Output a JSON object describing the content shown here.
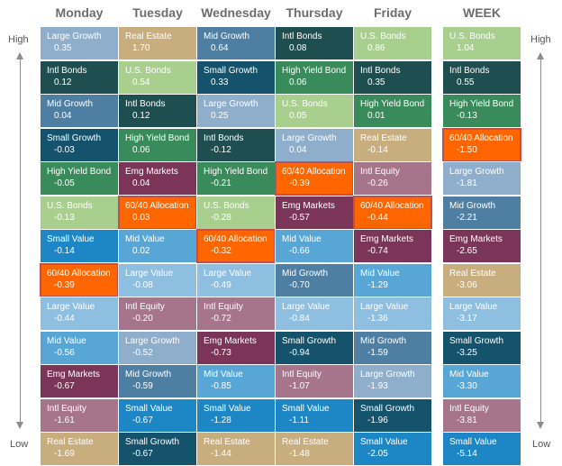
{
  "labels": {
    "high": "High",
    "low": "Low"
  },
  "colors": {
    "Large Growth": "#8faecb",
    "Real Estate": "#c8ad7f",
    "Mid Growth": "#4e7fa3",
    "Intl Bonds": "#1f4e50",
    "U.S. Bonds": "#a9cf8e",
    "Small Growth": "#14536b",
    "High Yield Bond": "#3a8b5b",
    "60/40 Allocation": "#ff6600",
    "Emg Markets": "#7a3559",
    "Intl Equity": "#a6758c",
    "Small Value": "#1d87c6",
    "Mid Value": "#58a6d6",
    "Large Value": "#8fbfe0"
  },
  "columns": [
    {
      "header": "Monday",
      "cells": [
        {
          "name": "Large Growth",
          "value": "0.35"
        },
        {
          "name": "Intl Bonds",
          "value": "0.12"
        },
        {
          "name": "Mid Growth",
          "value": "0.04"
        },
        {
          "name": "Small Growth",
          "value": "-0.03"
        },
        {
          "name": "High Yield Bond",
          "value": "-0.05"
        },
        {
          "name": "U.S. Bonds",
          "value": "-0.13"
        },
        {
          "name": "Small Value",
          "value": "-0.14"
        },
        {
          "name": "60/40 Allocation",
          "value": "-0.39"
        },
        {
          "name": "Large Value",
          "value": "-0.44"
        },
        {
          "name": "Mid Value",
          "value": "-0.56"
        },
        {
          "name": "Emg Markets",
          "value": "-0.67"
        },
        {
          "name": "Intl Equity",
          "value": "-1.61"
        },
        {
          "name": "Real Estate",
          "value": "-1.69"
        }
      ]
    },
    {
      "header": "Tuesday",
      "cells": [
        {
          "name": "Real Estate",
          "value": "1.70"
        },
        {
          "name": "U.S. Bonds",
          "value": "0.54"
        },
        {
          "name": "Intl Bonds",
          "value": "0.12"
        },
        {
          "name": "High Yield Bond",
          "value": "0.06"
        },
        {
          "name": "Emg Markets",
          "value": "0.04"
        },
        {
          "name": "60/40 Allocation",
          "value": "0.03"
        },
        {
          "name": "Mid Value",
          "value": "0.02"
        },
        {
          "name": "Large Value",
          "value": "-0.08"
        },
        {
          "name": "Intl Equity",
          "value": "-0.20"
        },
        {
          "name": "Large Growth",
          "value": "-0.52"
        },
        {
          "name": "Mid Growth",
          "value": "-0.59"
        },
        {
          "name": "Small Value",
          "value": "-0.67"
        },
        {
          "name": "Small Growth",
          "value": "-0.67"
        }
      ]
    },
    {
      "header": "Wednesday",
      "cells": [
        {
          "name": "Mid Growth",
          "value": "0.64"
        },
        {
          "name": "Small Growth",
          "value": "0.33"
        },
        {
          "name": "Large Growth",
          "value": "0.25"
        },
        {
          "name": "Intl Bonds",
          "value": "-0.12"
        },
        {
          "name": "High Yield Bond",
          "value": "-0.21"
        },
        {
          "name": "U.S. Bonds",
          "value": "-0.28"
        },
        {
          "name": "60/40 Allocation",
          "value": "-0.32"
        },
        {
          "name": "Large Value",
          "value": "-0.49"
        },
        {
          "name": "Intl Equity",
          "value": "-0.72"
        },
        {
          "name": "Emg Markets",
          "value": "-0.73"
        },
        {
          "name": "Mid Value",
          "value": "-0.85"
        },
        {
          "name": "Small Value",
          "value": "-1.28"
        },
        {
          "name": "Real Estate",
          "value": "-1.44"
        }
      ]
    },
    {
      "header": "Thursday",
      "cells": [
        {
          "name": "Intl Bonds",
          "value": "0.08"
        },
        {
          "name": "High Yield Bond",
          "value": "0.06"
        },
        {
          "name": "U.S. Bonds",
          "value": "0.05"
        },
        {
          "name": "Large Growth",
          "value": "0.04"
        },
        {
          "name": "60/40 Allocation",
          "value": "-0.39"
        },
        {
          "name": "Emg Markets",
          "value": "-0.57"
        },
        {
          "name": "Mid Value",
          "value": "-0.66"
        },
        {
          "name": "Mid Growth",
          "value": "-0.70"
        },
        {
          "name": "Large Value",
          "value": "-0.84"
        },
        {
          "name": "Small Growth",
          "value": "-0.94"
        },
        {
          "name": "Intl Equity",
          "value": "-1.07"
        },
        {
          "name": "Small Value",
          "value": "-1.11"
        },
        {
          "name": "Real Estate",
          "value": "-1.48"
        }
      ]
    },
    {
      "header": "Friday",
      "cells": [
        {
          "name": "U.S. Bonds",
          "value": "0.86"
        },
        {
          "name": "Intl Bonds",
          "value": "0.35"
        },
        {
          "name": "High Yield Bond",
          "value": "0.01"
        },
        {
          "name": "Real Estate",
          "value": "-0.14"
        },
        {
          "name": "Intl Equity",
          "value": "-0.26"
        },
        {
          "name": "60/40 Allocation",
          "value": "-0.44"
        },
        {
          "name": "Emg Markets",
          "value": "-0.74"
        },
        {
          "name": "Mid Value",
          "value": "-1.29"
        },
        {
          "name": "Large Value",
          "value": "-1.36"
        },
        {
          "name": "Mid Growth",
          "value": "-1.59"
        },
        {
          "name": "Large Growth",
          "value": "-1.93"
        },
        {
          "name": "Small Growth",
          "value": "-1.96"
        },
        {
          "name": "Small Value",
          "value": "-2.05"
        }
      ]
    },
    {
      "header": "WEEK",
      "cells": [
        {
          "name": "U.S. Bonds",
          "value": "1.04"
        },
        {
          "name": "Intl Bonds",
          "value": "0.55"
        },
        {
          "name": "High Yield Bond",
          "value": "-0.13"
        },
        {
          "name": "60/40 Allocation",
          "value": "-1.50"
        },
        {
          "name": "Large Growth",
          "value": "-1.81"
        },
        {
          "name": "Mid Growth",
          "value": "-2.21"
        },
        {
          "name": "Emg Markets",
          "value": "-2.65"
        },
        {
          "name": "Real Estate",
          "value": "-3.06"
        },
        {
          "name": "Large Value",
          "value": "-3.17"
        },
        {
          "name": "Small Growth",
          "value": "-3.25"
        },
        {
          "name": "Mid Value",
          "value": "-3.30"
        },
        {
          "name": "Intl Equity",
          "value": "-3.81"
        },
        {
          "name": "Small Value",
          "value": "-5.14"
        }
      ]
    }
  ]
}
